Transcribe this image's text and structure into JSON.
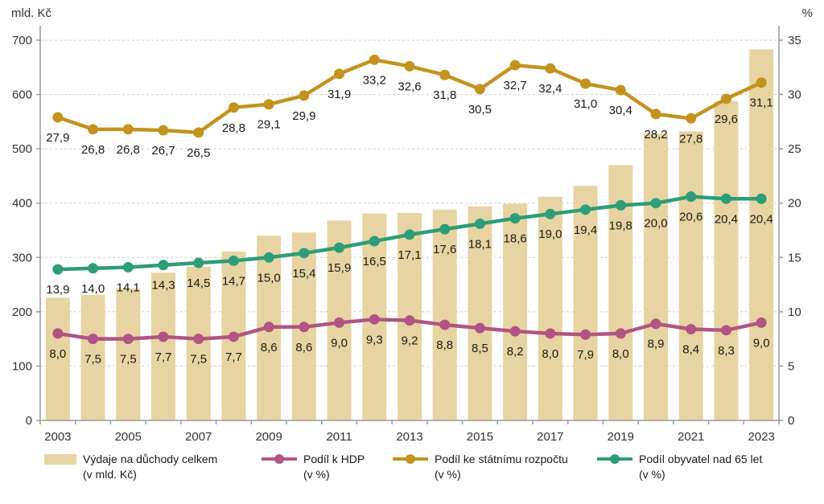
{
  "chart_data": {
    "type": "combo",
    "title": "",
    "decimal_separator": ",",
    "grid": "horizontal-dashed",
    "legend_position": "bottom",
    "categories": [
      "2003",
      "2004",
      "2005",
      "2006",
      "2007",
      "2008",
      "2009",
      "2010",
      "2011",
      "2012",
      "2013",
      "2014",
      "2015",
      "2016",
      "2017",
      "2018",
      "2019",
      "2020",
      "2021",
      "2022",
      "2023"
    ],
    "x_tick_labels": [
      "2003",
      "2005",
      "2007",
      "2009",
      "2011",
      "2013",
      "2015",
      "2017",
      "2019",
      "2021",
      "2023"
    ],
    "axes": {
      "left": {
        "label": "mld. Kč",
        "range": [
          0,
          700
        ],
        "step": 100,
        "ticks": [
          "0",
          "100",
          "200",
          "300",
          "400",
          "500",
          "600",
          "700"
        ]
      },
      "right": {
        "label": "%",
        "range": [
          0,
          35
        ],
        "step": 5,
        "ticks": [
          "0",
          "5",
          "10",
          "15",
          "20",
          "25",
          "30",
          "35"
        ]
      }
    },
    "series": [
      {
        "name": "Výdaje na důchody celkem (v mld. Kč)",
        "type": "bar",
        "axis": "left",
        "color": "#e8d4a2",
        "labels_shown": false,
        "values": [
          226,
          231,
          243,
          272,
          283,
          311,
          340,
          346,
          368,
          381,
          382,
          388,
          394,
          399,
          412,
          432,
          470,
          528,
          532,
          588,
          683
        ]
      },
      {
        "name": "Podíl ke státnímu rozpočtu (v %)",
        "type": "line",
        "axis": "right",
        "color": "#c3931e",
        "labels_shown": true,
        "values": [
          27.9,
          26.8,
          26.8,
          26.7,
          26.5,
          28.8,
          29.1,
          29.9,
          31.9,
          33.2,
          32.6,
          31.8,
          30.5,
          32.7,
          32.4,
          31.0,
          30.4,
          28.2,
          27.8,
          29.6,
          31.1
        ]
      },
      {
        "name": "Podíl obyvatel nad 65 let (v %)",
        "type": "line",
        "axis": "right",
        "color": "#2d9d78",
        "labels_shown": true,
        "values": [
          13.9,
          14.0,
          14.1,
          14.3,
          14.5,
          14.7,
          15.0,
          15.4,
          15.9,
          16.5,
          17.1,
          17.6,
          18.1,
          18.6,
          19.0,
          19.4,
          19.8,
          20.0,
          20.6,
          20.4,
          20.4
        ]
      },
      {
        "name": "Podíl k HDP (v %)",
        "type": "line",
        "axis": "right",
        "color": "#b05583",
        "labels_shown": true,
        "values": [
          8.0,
          7.5,
          7.5,
          7.7,
          7.5,
          7.7,
          8.6,
          8.6,
          9.0,
          9.3,
          9.2,
          8.8,
          8.5,
          8.2,
          8.0,
          7.9,
          8.0,
          8.9,
          8.4,
          8.3,
          9.0
        ]
      }
    ]
  },
  "legend": {
    "items": [
      {
        "line1": "Výdaje na důchody celkem",
        "line2": "(v mld. Kč)",
        "swatch": "bar",
        "color": "#e8d4a2"
      },
      {
        "line1": "Podíl k HDP",
        "line2": "(v %)",
        "swatch": "line",
        "color": "#b05583"
      },
      {
        "line1": "Podíl ke státnímu rozpočtu",
        "line2": "(v %)",
        "swatch": "line",
        "color": "#c3931e"
      },
      {
        "line1": "Podíl obyvatel nad 65 let",
        "line2": "(v %)",
        "swatch": "line",
        "color": "#2d9d78"
      }
    ]
  },
  "colors": {
    "grid": "#cdcdcd",
    "axis": "#9a9a9a",
    "tick_text": "#333333",
    "data_label_text": "#1a1a1a"
  }
}
